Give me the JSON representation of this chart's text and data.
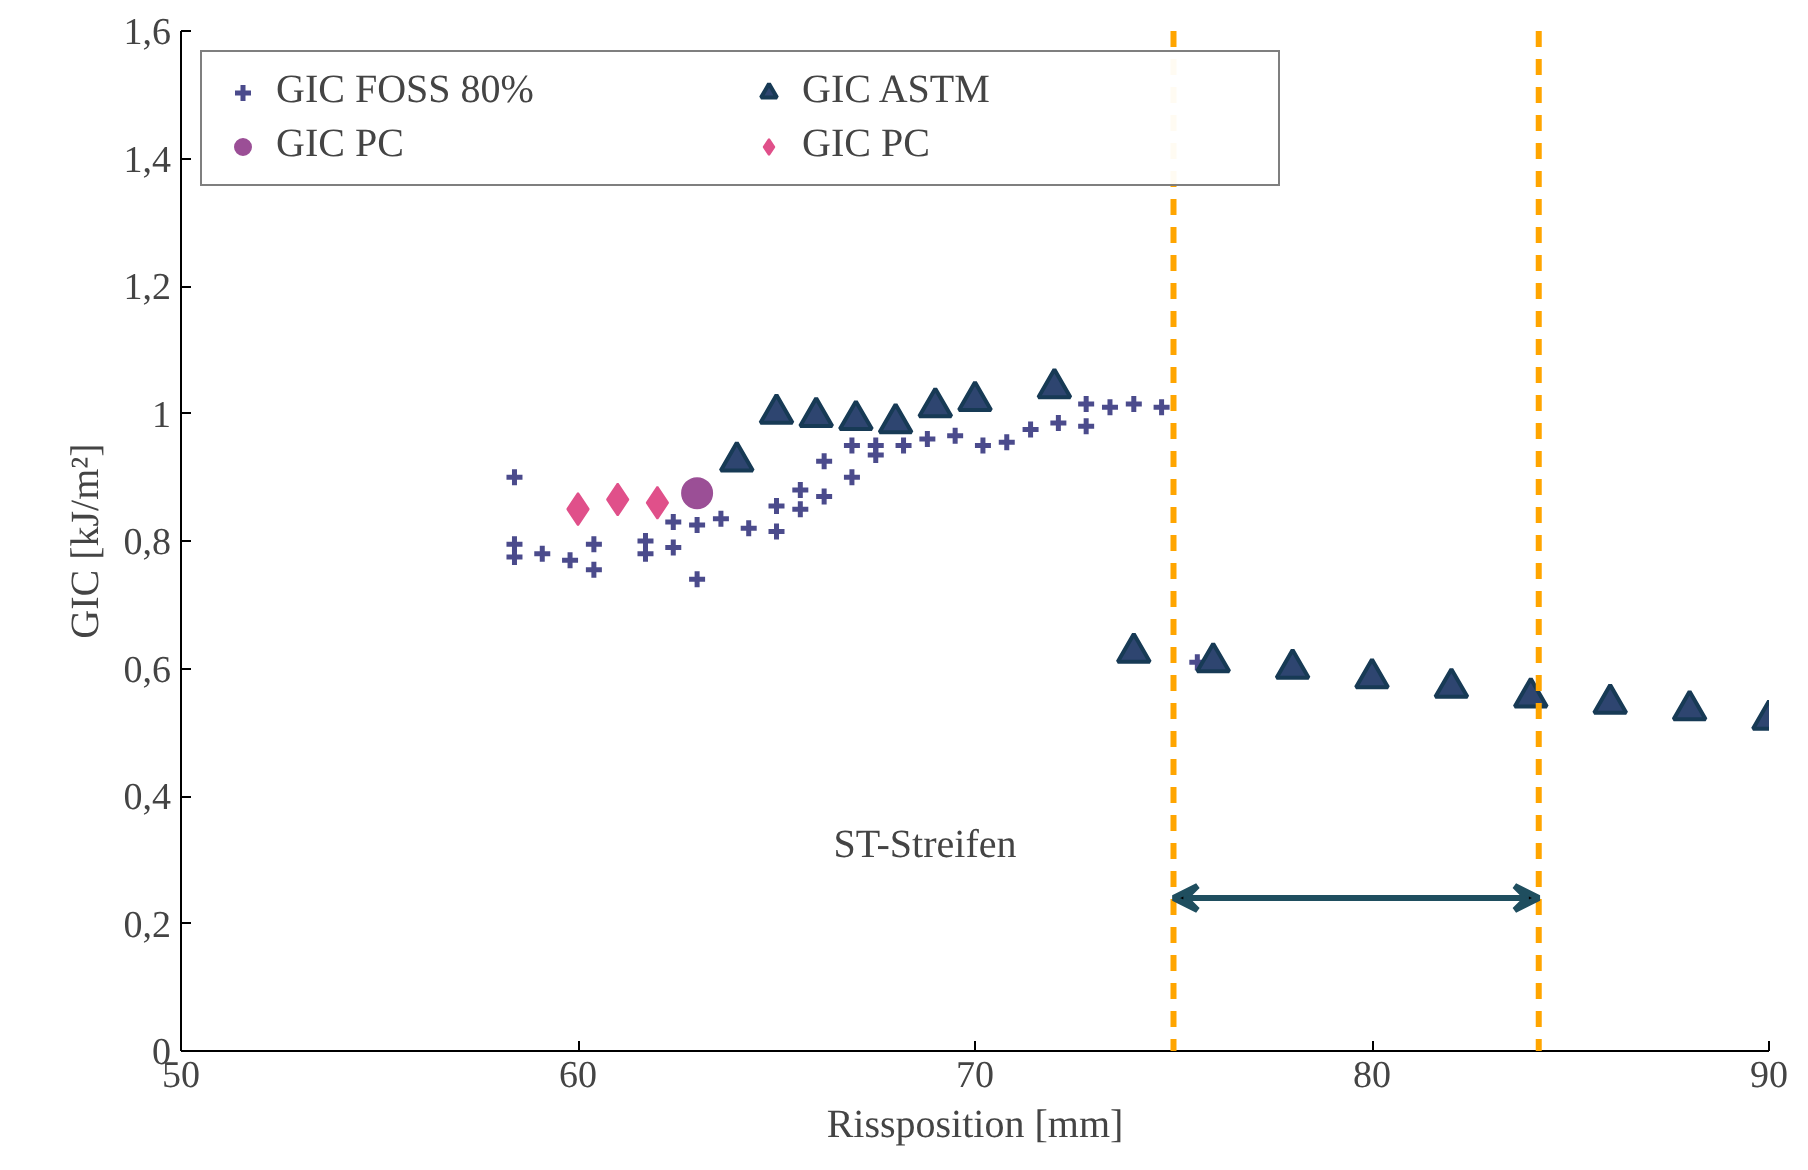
{
  "chart_data": {
    "type": "scatter",
    "xlabel": "Rissposition [mm]",
    "ylabel": "GIC [kJ/m²]",
    "xlim": [
      50,
      90
    ],
    "ylim": [
      0,
      1.6
    ],
    "xticks": [
      50,
      60,
      70,
      80,
      90
    ],
    "yticks": [
      0,
      {
        "value": 0.2,
        "label": "0,2"
      },
      {
        "value": 0.4,
        "label": "0,4"
      },
      {
        "value": 0.6,
        "label": "0,6"
      },
      {
        "value": 0.8,
        "label": "0,8"
      },
      1,
      {
        "value": 1.2,
        "label": "1,2"
      },
      {
        "value": 1.4,
        "label": "1,4"
      },
      {
        "value": 1.6,
        "label": "1,6"
      }
    ],
    "grid": false,
    "legend": "top left",
    "series": [
      {
        "name": "GIC FOSS 80%",
        "color": "#4b4b8c",
        "marker": "cross",
        "x": [
          58.4,
          58.4,
          58.4,
          59.1,
          59.8,
          60.4,
          60.4,
          61.7,
          61.7,
          62.4,
          62.4,
          63.0,
          63.0,
          63.6,
          64.3,
          65.0,
          65.0,
          65.6,
          65.6,
          66.2,
          66.2,
          66.9,
          66.9,
          67.5,
          67.5,
          68.2,
          68.8,
          69.5,
          70.2,
          70.8,
          71.4,
          72.1,
          72.8,
          72.8,
          73.4,
          74.0,
          74.7,
          75.6
        ],
        "values": [
          0.9,
          0.795,
          0.775,
          0.78,
          0.77,
          0.795,
          0.755,
          0.8,
          0.78,
          0.83,
          0.79,
          0.825,
          0.74,
          0.835,
          0.82,
          0.855,
          0.815,
          0.88,
          0.85,
          0.925,
          0.87,
          0.95,
          0.9,
          0.95,
          0.935,
          0.95,
          0.96,
          0.965,
          0.95,
          0.955,
          0.975,
          0.985,
          0.98,
          1.015,
          1.01,
          1.015,
          1.01,
          0.61
        ]
      },
      {
        "name": "GIC ASTM",
        "color": "#2e4570",
        "marker": "triangle",
        "x": [
          64,
          65,
          66,
          67,
          68,
          69,
          70,
          72,
          74,
          76,
          78,
          80,
          82,
          84,
          86,
          88,
          90
        ],
        "values": [
          0.925,
          1.0,
          0.995,
          0.99,
          0.985,
          1.01,
          1.02,
          1.04,
          0.625,
          0.61,
          0.6,
          0.585,
          0.57,
          0.555,
          0.545,
          0.535,
          0.52
        ]
      },
      {
        "name": "GIC PC",
        "color": "#9b4f96",
        "marker": "circle",
        "x": [
          63
        ],
        "values": [
          0.875
        ]
      },
      {
        "name": "GIC PC",
        "color": "#e0508a",
        "marker": "diamond",
        "x": [
          60,
          61,
          62
        ],
        "values": [
          0.85,
          0.865,
          0.86
        ]
      }
    ],
    "ref_lines": [
      {
        "axis": "x",
        "value": 75,
        "color": "#ffa500",
        "line_style": "dashed"
      },
      {
        "axis": "x",
        "value": 84.2,
        "color": "#ffa500",
        "line_style": "dashed"
      }
    ],
    "annotations": [
      "ST-Streifen"
    ]
  }
}
